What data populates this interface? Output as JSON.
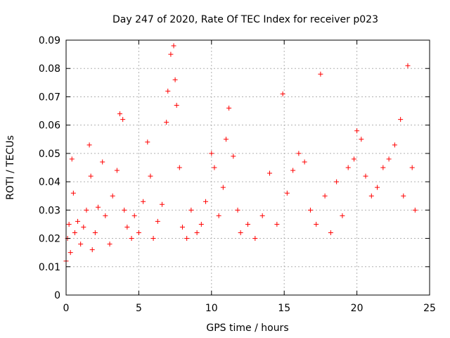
{
  "chart_data": {
    "type": "scatter",
    "title": "Day 247 of 2020, Rate Of TEC Index for receiver p023",
    "xlabel": "GPS time / hours",
    "ylabel": "ROTI / TECUs",
    "xlim": [
      0,
      25
    ],
    "ylim": [
      0,
      0.09
    ],
    "x_ticks": [
      "0",
      "5",
      "10",
      "15",
      "20",
      "25"
    ],
    "y_ticks": [
      "0",
      "0.01",
      "0.02",
      "0.03",
      "0.04",
      "0.05",
      "0.06",
      "0.07",
      "0.08",
      "0.09"
    ],
    "grid": true,
    "marker": "+",
    "marker_color": "#ff0000",
    "series": [
      {
        "x": [
          0.0,
          0.1,
          0.2,
          0.3,
          0.4,
          0.5,
          0.6,
          0.8,
          1.0,
          1.2,
          1.4,
          1.6,
          1.7,
          1.8,
          2.0,
          2.2,
          2.5,
          2.7,
          3.0,
          3.2,
          3.5,
          3.7,
          3.9,
          4.0,
          4.2,
          4.5,
          4.7,
          5.0,
          5.3,
          5.6,
          5.8,
          6.0,
          6.3,
          6.6,
          6.9,
          7.0,
          7.2,
          7.4,
          7.5,
          7.6,
          7.8,
          8.0,
          8.3,
          8.6,
          9.0,
          9.3,
          9.6,
          10.0,
          10.2,
          10.5,
          10.8,
          11.0,
          11.2,
          11.5,
          11.8,
          12.0,
          12.5,
          13.0,
          13.5,
          14.0,
          14.5,
          14.9,
          15.2,
          15.6,
          16.0,
          16.4,
          16.8,
          17.2,
          17.5,
          17.8,
          18.2,
          18.6,
          19.0,
          19.4,
          19.8,
          20.0,
          20.3,
          20.6,
          21.0,
          21.4,
          21.8,
          22.2,
          22.6,
          23.0,
          23.2,
          23.5,
          23.8,
          24.0
        ],
        "y": [
          0.012,
          0.02,
          0.025,
          0.015,
          0.048,
          0.036,
          0.022,
          0.026,
          0.018,
          0.024,
          0.03,
          0.053,
          0.042,
          0.016,
          0.022,
          0.031,
          0.047,
          0.028,
          0.018,
          0.035,
          0.044,
          0.064,
          0.062,
          0.03,
          0.024,
          0.02,
          0.028,
          0.022,
          0.033,
          0.054,
          0.042,
          0.02,
          0.026,
          0.032,
          0.061,
          0.072,
          0.085,
          0.088,
          0.076,
          0.067,
          0.045,
          0.024,
          0.02,
          0.03,
          0.022,
          0.025,
          0.033,
          0.05,
          0.045,
          0.028,
          0.038,
          0.055,
          0.066,
          0.049,
          0.03,
          0.022,
          0.025,
          0.02,
          0.028,
          0.043,
          0.025,
          0.071,
          0.036,
          0.044,
          0.05,
          0.047,
          0.03,
          0.025,
          0.078,
          0.035,
          0.022,
          0.04,
          0.028,
          0.045,
          0.048,
          0.058,
          0.055,
          0.042,
          0.035,
          0.038,
          0.045,
          0.048,
          0.053,
          0.062,
          0.035,
          0.081,
          0.045,
          0.03
        ]
      }
    ]
  }
}
